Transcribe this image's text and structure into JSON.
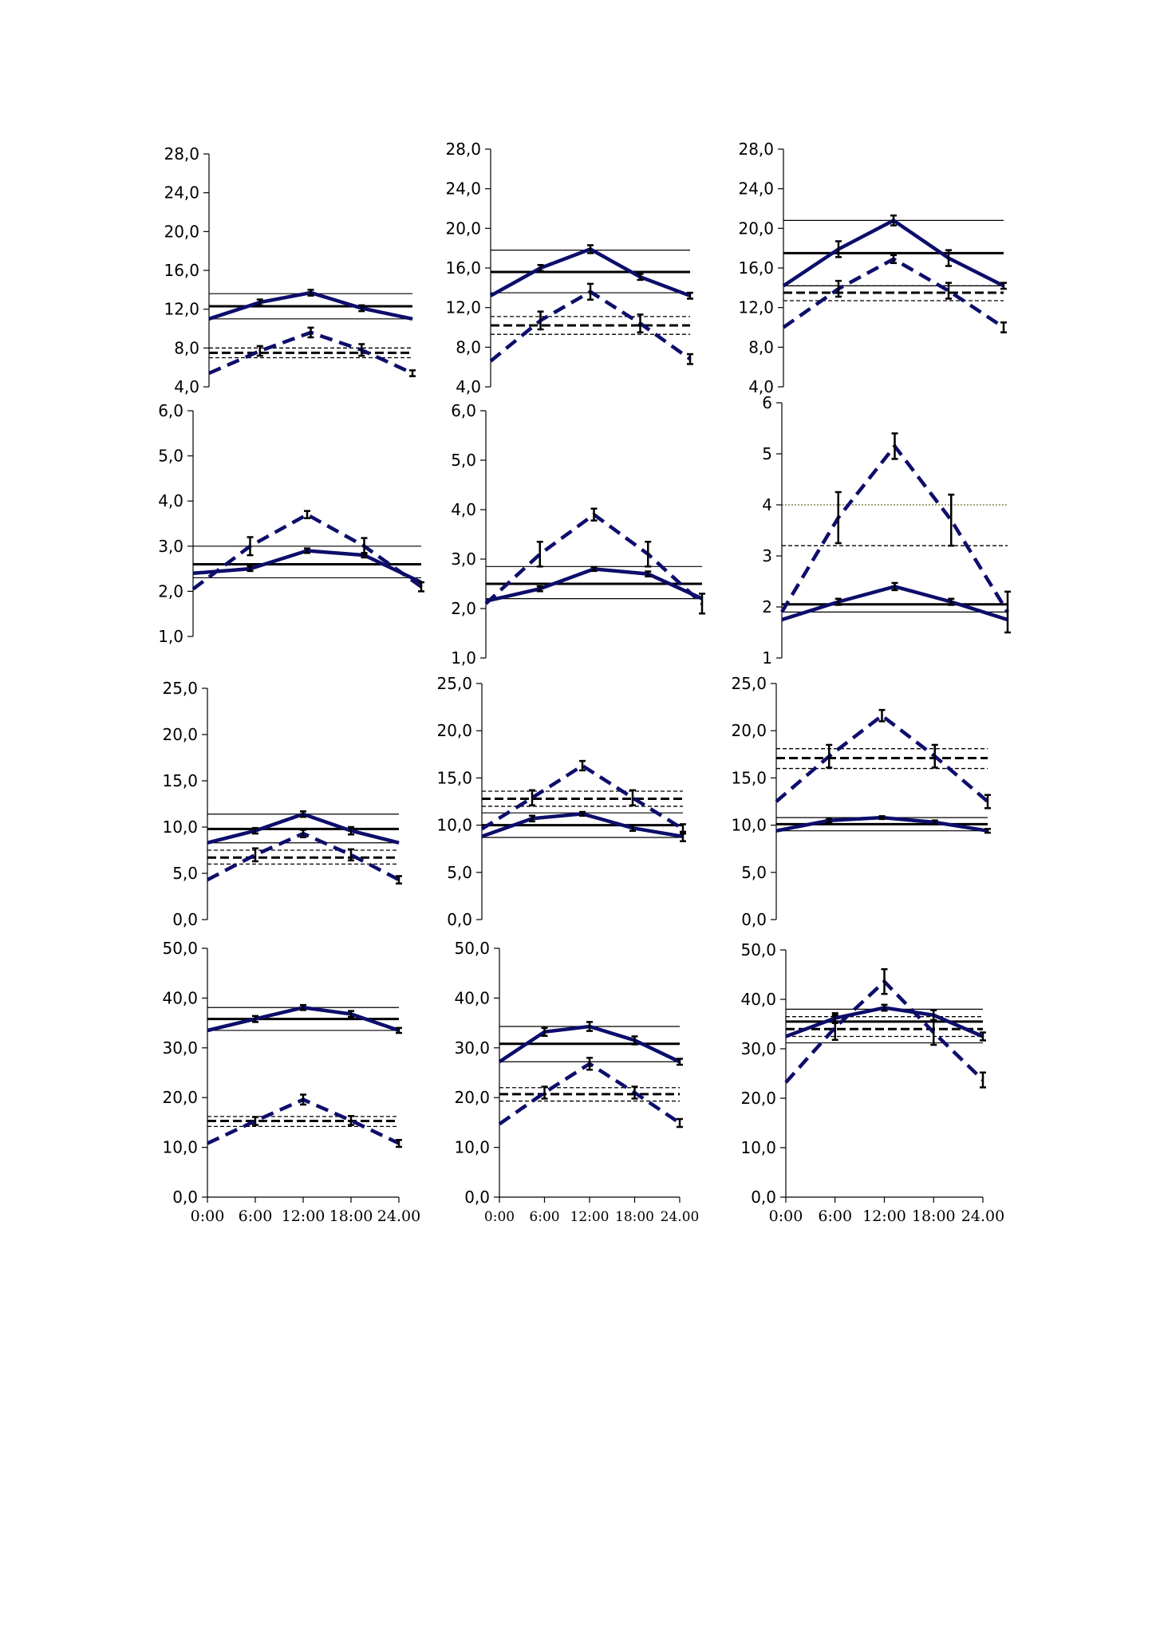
{
  "colors": {
    "series": "#0d0d6b",
    "reference": "#000000",
    "axis": "#000000",
    "dotted_line": "#6b6b2a"
  },
  "x_tick_labels": [
    "0:00",
    "6:00",
    "12:00",
    "18:00",
    "24.00"
  ],
  "chart_data": [
    {
      "type": "line",
      "panel": "r1c1",
      "x": [
        0,
        6,
        12,
        18,
        24
      ],
      "ylim": [
        4,
        28
      ],
      "yticks": [
        "4,0",
        "8,0",
        "12,0",
        "16,0",
        "20,0",
        "24,0",
        "28,0"
      ],
      "xlabels": [],
      "grid": false,
      "series": [
        {
          "style": "solid",
          "values": [
            11.0,
            12.7,
            13.7,
            12.1,
            11.0
          ],
          "errors": [
            0,
            0.3,
            0.3,
            0.3,
            0
          ]
        },
        {
          "style": "dashed",
          "values": [
            5.4,
            7.7,
            9.6,
            7.8,
            5.4
          ],
          "errors": [
            0,
            0.5,
            0.5,
            0.6,
            0.3
          ]
        }
      ],
      "ref_lines": [
        {
          "y": 13.6,
          "style": "thin"
        },
        {
          "y": 12.3,
          "style": "thick"
        },
        {
          "y": 11.0,
          "style": "thin"
        },
        {
          "y": 8.0,
          "style": "thin-dashed"
        },
        {
          "y": 7.5,
          "style": "thick-dashed"
        },
        {
          "y": 7.0,
          "style": "thin-dashed"
        }
      ]
    },
    {
      "type": "line",
      "panel": "r1c2",
      "x": [
        0,
        6,
        12,
        18,
        24
      ],
      "ylim": [
        4,
        28
      ],
      "yticks": [
        "4,0",
        "8,0",
        "12,0",
        "16,0",
        "20,0",
        "24,0",
        "28,0"
      ],
      "xlabels": [],
      "grid": false,
      "series": [
        {
          "style": "solid",
          "values": [
            13.2,
            16.0,
            17.9,
            15.1,
            13.2
          ],
          "errors": [
            0,
            0.3,
            0.4,
            0.3,
            0.3
          ]
        },
        {
          "style": "dashed",
          "values": [
            6.6,
            10.7,
            13.6,
            10.4,
            6.8
          ],
          "errors": [
            0,
            0.9,
            0.8,
            0.9,
            0.5
          ]
        }
      ],
      "ref_lines": [
        {
          "y": 17.8,
          "style": "thin"
        },
        {
          "y": 15.6,
          "style": "thick"
        },
        {
          "y": 13.5,
          "style": "thin"
        },
        {
          "y": 11.1,
          "style": "thin-dashed"
        },
        {
          "y": 10.2,
          "style": "thick-dashed"
        },
        {
          "y": 9.3,
          "style": "thin-dashed"
        }
      ]
    },
    {
      "type": "line",
      "panel": "r1c3",
      "x": [
        0,
        6,
        12,
        18,
        24
      ],
      "ylim": [
        4,
        28
      ],
      "yticks": [
        "4,0",
        "8,0",
        "12,0",
        "16,0",
        "20,0",
        "24,0",
        "28,0"
      ],
      "xlabels": [],
      "grid": false,
      "series": [
        {
          "style": "solid",
          "values": [
            14.2,
            17.9,
            20.8,
            17.0,
            14.2
          ],
          "errors": [
            0,
            0.8,
            0.5,
            0.8,
            0.3
          ]
        },
        {
          "style": "dashed",
          "values": [
            10.0,
            13.9,
            16.9,
            13.7,
            10.0
          ],
          "errors": [
            0,
            0.8,
            0.4,
            0.8,
            0.5
          ]
        }
      ],
      "ref_lines": [
        {
          "y": 20.8,
          "style": "thin"
        },
        {
          "y": 17.5,
          "style": "thick"
        },
        {
          "y": 14.2,
          "style": "thin"
        },
        {
          "y": 14.2,
          "style": "thin-dashed"
        },
        {
          "y": 13.5,
          "style": "thick-dashed"
        },
        {
          "y": 12.7,
          "style": "thin-dashed"
        }
      ]
    },
    {
      "type": "line",
      "panel": "r2c1",
      "x": [
        0,
        6,
        12,
        18,
        24
      ],
      "ylim": [
        1,
        6
      ],
      "yticks": [
        "1,0",
        "2,0",
        "3,0",
        "4,0",
        "5,0",
        "6,0"
      ],
      "xlabels": [],
      "grid": false,
      "series": [
        {
          "style": "solid",
          "values": [
            2.4,
            2.5,
            2.9,
            2.8,
            2.2
          ],
          "errors": [
            0,
            0.05,
            0.05,
            0.05,
            0
          ]
        },
        {
          "style": "dashed",
          "values": [
            2.05,
            3.0,
            3.7,
            3.0,
            2.1
          ],
          "errors": [
            0,
            0.2,
            0.08,
            0.18,
            0.1
          ]
        }
      ],
      "ref_lines": [
        {
          "y": 3.0,
          "style": "thin"
        },
        {
          "y": 2.6,
          "style": "thick"
        },
        {
          "y": 2.3,
          "style": "thin"
        }
      ]
    },
    {
      "type": "line",
      "panel": "r2c2",
      "x": [
        0,
        6,
        12,
        18,
        24
      ],
      "ylim": [
        1,
        6
      ],
      "yticks": [
        "1,0",
        "2,0",
        "3,0",
        "4,0",
        "5,0",
        "6,0"
      ],
      "xlabels": [],
      "grid": false,
      "series": [
        {
          "style": "solid",
          "values": [
            2.15,
            2.4,
            2.8,
            2.7,
            2.2
          ],
          "errors": [
            0,
            0.05,
            0.04,
            0.05,
            0
          ]
        },
        {
          "style": "dashed",
          "values": [
            2.1,
            3.1,
            3.9,
            3.1,
            2.1
          ],
          "errors": [
            0,
            0.25,
            0.12,
            0.25,
            0.2
          ]
        }
      ],
      "ref_lines": [
        {
          "y": 2.85,
          "style": "thin"
        },
        {
          "y": 2.5,
          "style": "thick"
        },
        {
          "y": 2.2,
          "style": "thin"
        }
      ]
    },
    {
      "type": "line",
      "panel": "r2c3",
      "x": [
        0,
        6,
        12,
        18,
        24
      ],
      "ylim": [
        1,
        6
      ],
      "yticks": [
        "1",
        "2",
        "3",
        "4",
        "5",
        "6"
      ],
      "xlabels": [],
      "grid": false,
      "series": [
        {
          "style": "solid",
          "values": [
            1.75,
            2.1,
            2.4,
            2.1,
            1.75
          ],
          "errors": [
            0,
            0.06,
            0.07,
            0.06,
            0
          ]
        },
        {
          "style": "dashed",
          "values": [
            1.9,
            3.75,
            5.15,
            3.7,
            1.9
          ],
          "errors": [
            0,
            0.5,
            0.25,
            0.5,
            0.4
          ]
        }
      ],
      "ref_lines": [
        {
          "y": 4.0,
          "style": "dotted"
        },
        {
          "y": 3.2,
          "style": "thin-dashed"
        },
        {
          "y": 2.05,
          "style": "thick"
        },
        {
          "y": 1.9,
          "style": "thin"
        }
      ]
    },
    {
      "type": "line",
      "panel": "r3c1",
      "x": [
        0,
        6,
        12,
        18,
        24
      ],
      "ylim": [
        0,
        25
      ],
      "yticks": [
        "0,0",
        "5,0",
        "10,0",
        "15,0",
        "20,0",
        "25,0"
      ],
      "xlabels": [],
      "grid": false,
      "series": [
        {
          "style": "solid",
          "values": [
            8.3,
            9.6,
            11.4,
            9.6,
            8.3
          ],
          "errors": [
            0,
            0.3,
            0.3,
            0.4,
            0
          ]
        },
        {
          "style": "dashed",
          "values": [
            4.3,
            7.0,
            9.3,
            7.0,
            4.3
          ],
          "errors": [
            0,
            0.7,
            0.4,
            0.6,
            0.4
          ]
        }
      ],
      "ref_lines": [
        {
          "y": 11.4,
          "style": "thin"
        },
        {
          "y": 9.8,
          "style": "thick"
        },
        {
          "y": 8.3,
          "style": "thin"
        },
        {
          "y": 7.5,
          "style": "thin-dashed"
        },
        {
          "y": 6.7,
          "style": "thick-dashed"
        },
        {
          "y": 6.0,
          "style": "thin-dashed"
        }
      ]
    },
    {
      "type": "line",
      "panel": "r3c2",
      "x": [
        0,
        6,
        12,
        18,
        24
      ],
      "ylim": [
        0,
        25
      ],
      "yticks": [
        "0,0",
        "5,0",
        "10,0",
        "15,0",
        "20,0",
        "25,0"
      ],
      "xlabels": [],
      "grid": false,
      "series": [
        {
          "style": "solid",
          "values": [
            8.8,
            10.7,
            11.2,
            9.7,
            8.8
          ],
          "errors": [
            0,
            0.3,
            0.2,
            0.3,
            0.5
          ]
        },
        {
          "style": "dashed",
          "values": [
            9.6,
            12.9,
            16.3,
            12.9,
            9.6
          ],
          "errors": [
            0,
            0.8,
            0.5,
            0.8,
            0.5
          ]
        }
      ],
      "ref_lines": [
        {
          "y": 13.6,
          "style": "thin-dashed"
        },
        {
          "y": 12.8,
          "style": "thick-dashed"
        },
        {
          "y": 12.0,
          "style": "thin-dashed"
        },
        {
          "y": 11.3,
          "style": "thin"
        },
        {
          "y": 10.0,
          "style": "thick"
        },
        {
          "y": 8.7,
          "style": "thin"
        }
      ]
    },
    {
      "type": "line",
      "panel": "r3c3",
      "x": [
        0,
        6,
        12,
        18,
        24
      ],
      "ylim": [
        0,
        25
      ],
      "yticks": [
        "0,0",
        "5,0",
        "10,0",
        "15,0",
        "20,0",
        "25,0"
      ],
      "xlabels": [],
      "grid": false,
      "series": [
        {
          "style": "solid",
          "values": [
            9.4,
            10.5,
            10.8,
            10.3,
            9.4
          ],
          "errors": [
            0,
            0.2,
            0.15,
            0.2,
            0.2
          ]
        },
        {
          "style": "dashed",
          "values": [
            12.5,
            17.3,
            21.6,
            17.3,
            12.5
          ],
          "errors": [
            0,
            1.2,
            0.6,
            1.2,
            0.7
          ]
        }
      ],
      "ref_lines": [
        {
          "y": 18.1,
          "style": "thin-dashed"
        },
        {
          "y": 17.1,
          "style": "thick-dashed"
        },
        {
          "y": 16.0,
          "style": "thin-dashed"
        },
        {
          "y": 10.8,
          "style": "thin"
        },
        {
          "y": 10.1,
          "style": "thick"
        },
        {
          "y": 9.4,
          "style": "thin"
        }
      ]
    },
    {
      "type": "line",
      "panel": "r4c1",
      "x": [
        0,
        6,
        12,
        18,
        24
      ],
      "ylim": [
        0,
        50
      ],
      "yticks": [
        "0,0",
        "10,0",
        "20,0",
        "30,0",
        "40,0",
        "50,0"
      ],
      "xlabels": [
        "0:00",
        "6:00",
        "12:00",
        "18:00",
        "24.00"
      ],
      "grid": false,
      "series": [
        {
          "style": "solid",
          "values": [
            33.5,
            35.8,
            38.1,
            36.8,
            33.5
          ],
          "errors": [
            0,
            0.6,
            0.5,
            0.6,
            0.5
          ]
        },
        {
          "style": "dashed",
          "values": [
            10.8,
            15.3,
            19.6,
            15.4,
            10.8
          ],
          "errors": [
            0,
            0.8,
            1.0,
            0.9,
            0.7
          ]
        }
      ],
      "ref_lines": [
        {
          "y": 38.1,
          "style": "thin"
        },
        {
          "y": 35.8,
          "style": "thick"
        },
        {
          "y": 33.5,
          "style": "thin"
        },
        {
          "y": 16.2,
          "style": "thin-dashed"
        },
        {
          "y": 15.3,
          "style": "thick-dashed"
        },
        {
          "y": 14.2,
          "style": "thin-dashed"
        }
      ]
    },
    {
      "type": "line",
      "panel": "r4c2",
      "x": [
        0,
        6,
        12,
        18,
        24
      ],
      "ylim": [
        0,
        50
      ],
      "yticks": [
        "0,0",
        "10,0",
        "20,0",
        "30,0",
        "40,0",
        "50,0"
      ],
      "xlabels": [
        "0:00",
        "6:00",
        "12:00",
        "18:00",
        "24.00"
      ],
      "grid": false,
      "series": [
        {
          "style": "solid",
          "values": [
            27.2,
            33.2,
            34.3,
            31.5,
            27.2
          ],
          "errors": [
            0,
            0.8,
            0.9,
            0.8,
            0.6
          ]
        },
        {
          "style": "dashed",
          "values": [
            14.7,
            21.0,
            26.8,
            21.0,
            14.9
          ],
          "errors": [
            0,
            1.2,
            1.2,
            1.2,
            0.8
          ]
        }
      ],
      "ref_lines": [
        {
          "y": 34.3,
          "style": "thin"
        },
        {
          "y": 30.8,
          "style": "thick"
        },
        {
          "y": 27.2,
          "style": "thin"
        },
        {
          "y": 22.0,
          "style": "thin-dashed"
        },
        {
          "y": 20.7,
          "style": "thick-dashed"
        },
        {
          "y": 19.3,
          "style": "thin-dashed"
        }
      ]
    },
    {
      "type": "line",
      "panel": "r4c3",
      "x": [
        0,
        6,
        12,
        18,
        24
      ],
      "ylim": [
        0,
        50
      ],
      "yticks": [
        "0,0",
        "10,0",
        "20,0",
        "30,0",
        "40,0",
        "50,0"
      ],
      "xlabels": [
        "0:00",
        "6:00",
        "12:00",
        "18:00",
        "24.00"
      ],
      "grid": false,
      "series": [
        {
          "style": "solid",
          "values": [
            32.5,
            36.2,
            38.3,
            36.8,
            32.5
          ],
          "errors": [
            0,
            1.0,
            0.6,
            1.0,
            0.8
          ]
        },
        {
          "style": "dashed",
          "values": [
            23.2,
            34.3,
            43.6,
            33.3,
            23.7
          ],
          "errors": [
            0,
            2.5,
            2.5,
            2.5,
            1.5
          ]
        }
      ],
      "ref_lines": [
        {
          "y": 38.0,
          "style": "thin"
        },
        {
          "y": 36.5,
          "style": "thin-dashed"
        },
        {
          "y": 35.5,
          "style": "thick"
        },
        {
          "y": 34.0,
          "style": "thick-dashed"
        },
        {
          "y": 32.5,
          "style": "thin-dashed"
        },
        {
          "y": 31.2,
          "style": "thin"
        }
      ]
    }
  ]
}
